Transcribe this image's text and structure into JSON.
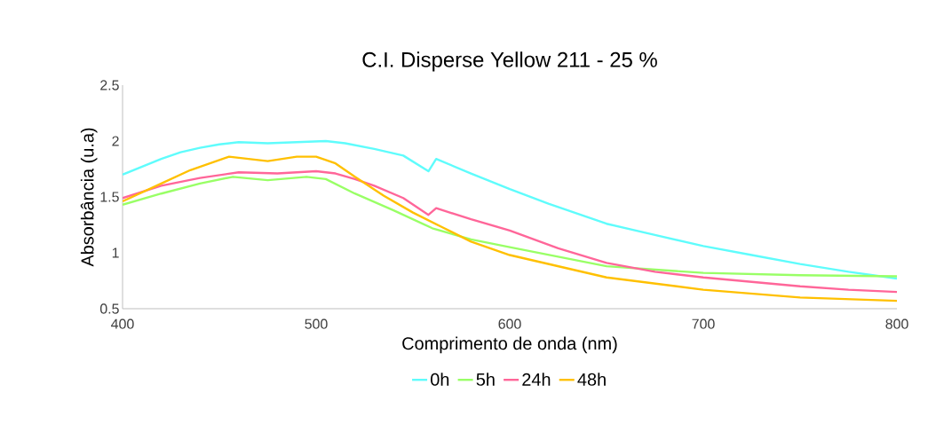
{
  "chart_data": {
    "type": "line",
    "title": "C.I. Disperse Yellow 211 - 25 %",
    "xlabel": "Comprimento de onda (nm)",
    "ylabel": "Absorbância (u.a)",
    "xlim": [
      400,
      800
    ],
    "xticks": [
      400,
      500,
      600,
      700,
      800
    ],
    "ylim": [
      0.5,
      2.5
    ],
    "yticks": [
      0.5,
      1,
      1.5,
      2,
      2.5
    ],
    "legend": "bottom",
    "grid": false,
    "marker": "none",
    "line_style": "solid",
    "series": [
      {
        "name": "0h",
        "color": "#5ffcfc",
        "x": [
          400,
          410,
          420,
          430,
          440,
          450,
          460,
          475,
          490,
          505,
          515,
          530,
          545,
          558,
          562,
          580,
          600,
          620,
          650,
          675,
          700,
          725,
          750,
          775,
          800
        ],
        "values": [
          1.7,
          1.77,
          1.84,
          1.9,
          1.94,
          1.97,
          1.99,
          1.98,
          1.99,
          2.0,
          1.98,
          1.93,
          1.87,
          1.73,
          1.84,
          1.71,
          1.57,
          1.44,
          1.26,
          1.16,
          1.06,
          0.98,
          0.9,
          0.83,
          0.77
        ]
      },
      {
        "name": "5h",
        "color": "#99ff66",
        "x": [
          400,
          420,
          440,
          457,
          475,
          495,
          505,
          520,
          540,
          560,
          580,
          600,
          650,
          700,
          750,
          800
        ],
        "values": [
          1.43,
          1.53,
          1.62,
          1.68,
          1.65,
          1.68,
          1.66,
          1.53,
          1.38,
          1.22,
          1.12,
          1.05,
          0.88,
          0.82,
          0.8,
          0.79
        ]
      },
      {
        "name": "24h",
        "color": "#ff6699",
        "x": [
          400,
          420,
          440,
          460,
          480,
          500,
          510,
          520,
          530,
          545,
          558,
          562,
          580,
          600,
          625,
          650,
          675,
          700,
          725,
          750,
          775,
          800
        ],
        "values": [
          1.49,
          1.6,
          1.67,
          1.72,
          1.71,
          1.73,
          1.71,
          1.66,
          1.6,
          1.49,
          1.34,
          1.4,
          1.3,
          1.2,
          1.04,
          0.91,
          0.83,
          0.78,
          0.74,
          0.7,
          0.67,
          0.65
        ]
      },
      {
        "name": "48h",
        "color": "#ffc000",
        "x": [
          400,
          420,
          435,
          455,
          475,
          490,
          500,
          510,
          520,
          535,
          550,
          565,
          580,
          600,
          650,
          700,
          750,
          800
        ],
        "values": [
          1.46,
          1.62,
          1.74,
          1.86,
          1.82,
          1.86,
          1.86,
          1.8,
          1.68,
          1.51,
          1.36,
          1.23,
          1.1,
          0.98,
          0.78,
          0.67,
          0.6,
          0.57
        ]
      }
    ]
  }
}
